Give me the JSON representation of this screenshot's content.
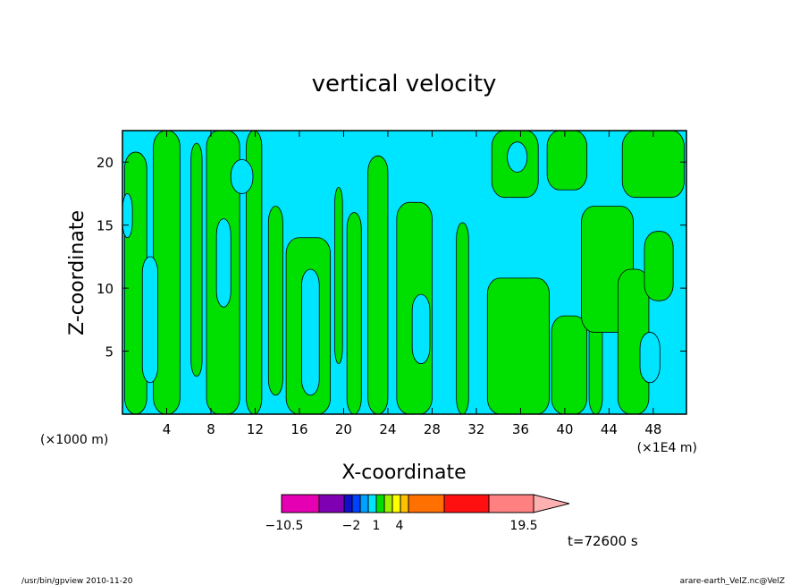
{
  "chart_data": {
    "type": "heatmap",
    "title": "vertical velocity",
    "xlabel": "X-coordinate",
    "ylabel": "Z-coordinate",
    "x_scale_label": "(×1000 m)",
    "x_unit_label": "(×1E4 m)",
    "xlim": [
      0,
      51
    ],
    "ylim": [
      0,
      22.5
    ],
    "x_ticks": [
      "4",
      "8",
      "12",
      "16",
      "20",
      "24",
      "28",
      "32",
      "36",
      "40",
      "44",
      "48"
    ],
    "y_ticks": [
      "5",
      "10",
      "15",
      "20"
    ],
    "fill_colors": {
      "low": "#00e5ff",
      "high": "#00e000"
    },
    "regions": [
      {
        "level": "high",
        "x": [
          0.2,
          2.2
        ],
        "y": [
          0,
          20.8
        ]
      },
      {
        "level": "high",
        "x": [
          2.8,
          5.2
        ],
        "y": [
          0,
          22.5
        ]
      },
      {
        "level": "high",
        "x": [
          6.2,
          7.2
        ],
        "y": [
          3,
          21.5
        ]
      },
      {
        "level": "high",
        "x": [
          7.6,
          10.6
        ],
        "y": [
          0,
          22.5
        ]
      },
      {
        "level": "high",
        "x": [
          11.2,
          12.6
        ],
        "y": [
          0,
          22.5
        ]
      },
      {
        "level": "high",
        "x": [
          13.2,
          14.5
        ],
        "y": [
          1.5,
          16.5
        ]
      },
      {
        "level": "high",
        "x": [
          14.8,
          18.8
        ],
        "y": [
          0,
          14
        ]
      },
      {
        "level": "high",
        "x": [
          19.2,
          19.9
        ],
        "y": [
          4,
          18
        ]
      },
      {
        "level": "high",
        "x": [
          20.3,
          21.6
        ],
        "y": [
          0,
          16
        ]
      },
      {
        "level": "high",
        "x": [
          22.2,
          24
        ],
        "y": [
          0,
          20.5
        ]
      },
      {
        "level": "high",
        "x": [
          24.8,
          28
        ],
        "y": [
          0,
          16.8
        ]
      },
      {
        "level": "high",
        "x": [
          30.2,
          31.3
        ],
        "y": [
          0,
          15.2
        ]
      },
      {
        "level": "high",
        "x": [
          33,
          38.6
        ],
        "y": [
          0,
          10.8
        ]
      },
      {
        "level": "high",
        "x": [
          33.4,
          37.6
        ],
        "y": [
          17.2,
          22.5
        ]
      },
      {
        "level": "high",
        "x": [
          38.4,
          42
        ],
        "y": [
          17.8,
          22.5
        ]
      },
      {
        "level": "high",
        "x": [
          38.8,
          42
        ],
        "y": [
          0,
          7.8
        ]
      },
      {
        "level": "high",
        "x": [
          42.2,
          43.4
        ],
        "y": [
          0,
          9.5
        ]
      },
      {
        "level": "high",
        "x": [
          41.5,
          46.2
        ],
        "y": [
          6.5,
          16.5
        ]
      },
      {
        "level": "high",
        "x": [
          44.8,
          47.6
        ],
        "y": [
          0,
          11.5
        ]
      },
      {
        "level": "high",
        "x": [
          45.2,
          50.8
        ],
        "y": [
          17.2,
          22.5
        ]
      },
      {
        "level": "high",
        "x": [
          47.2,
          49.8
        ],
        "y": [
          9,
          14.5
        ]
      },
      {
        "level": "low",
        "x": [
          1.8,
          3.2
        ],
        "y": [
          2.5,
          12.5
        ]
      },
      {
        "level": "low",
        "x": [
          8.5,
          9.8
        ],
        "y": [
          8.5,
          15.5
        ]
      },
      {
        "level": "low",
        "x": [
          9.8,
          11.8
        ],
        "y": [
          17.5,
          20.2
        ]
      },
      {
        "level": "low",
        "x": [
          16.2,
          17.8
        ],
        "y": [
          1.5,
          11.5
        ]
      },
      {
        "level": "low",
        "x": [
          26.2,
          27.8
        ],
        "y": [
          4,
          9.5
        ]
      },
      {
        "level": "low",
        "x": [
          34.8,
          36.6
        ],
        "y": [
          19.2,
          21.6
        ]
      },
      {
        "level": "low",
        "x": [
          46.8,
          48.6
        ],
        "y": [
          2.5,
          6.5
        ]
      },
      {
        "level": "low",
        "x": [
          0,
          0.9
        ],
        "y": [
          14,
          17.5
        ]
      }
    ],
    "colorbar": {
      "colors": [
        "#e600b3",
        "#7f00b3",
        "#1010c8",
        "#0040ff",
        "#00a0ff",
        "#00e5ff",
        "#00e000",
        "#a0f000",
        "#ffff00",
        "#ffc000",
        "#ff7000",
        "#ff1010",
        "#ff8080"
      ],
      "extend_color": "#ffb0b0",
      "labels": [
        "−10.5",
        "−2",
        "1",
        "4",
        "19.5"
      ]
    },
    "time_label": "t=72600  s"
  },
  "footer": {
    "left": "/usr/bin/gpview   2010-11-20",
    "right": "arare-earth_VelZ.nc@VelZ"
  }
}
